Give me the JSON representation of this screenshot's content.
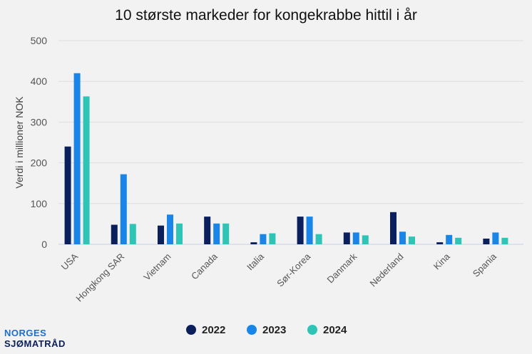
{
  "chart_data": {
    "type": "bar",
    "title": "10 største markeder for kongekrabbe hittil i år",
    "ylabel": "Verdi i millioner NOK",
    "xlabel": "",
    "ylim": [
      0,
      500
    ],
    "yticks": [
      0,
      100,
      200,
      300,
      400,
      500
    ],
    "grid": true,
    "legend_position": "bottom",
    "categories": [
      "USA",
      "Hongkong SAR",
      "Vietnam",
      "Canada",
      "Italia",
      "Sør-Korea",
      "Danmark",
      "Nederland",
      "Kina",
      "Spania"
    ],
    "series": [
      {
        "name": "2022",
        "color": "#0a1f5c",
        "values": [
          240,
          48,
          46,
          68,
          5,
          68,
          29,
          79,
          5,
          14
        ]
      },
      {
        "name": "2023",
        "color": "#1a85e8",
        "values": [
          420,
          172,
          73,
          51,
          25,
          68,
          29,
          31,
          23,
          29
        ]
      },
      {
        "name": "2024",
        "color": "#2ec4b6",
        "values": [
          363,
          50,
          51,
          51,
          27,
          25,
          22,
          19,
          16,
          16
        ]
      }
    ]
  },
  "logo": {
    "line1": "NORGES",
    "line2": "SJØMATRÅD"
  }
}
